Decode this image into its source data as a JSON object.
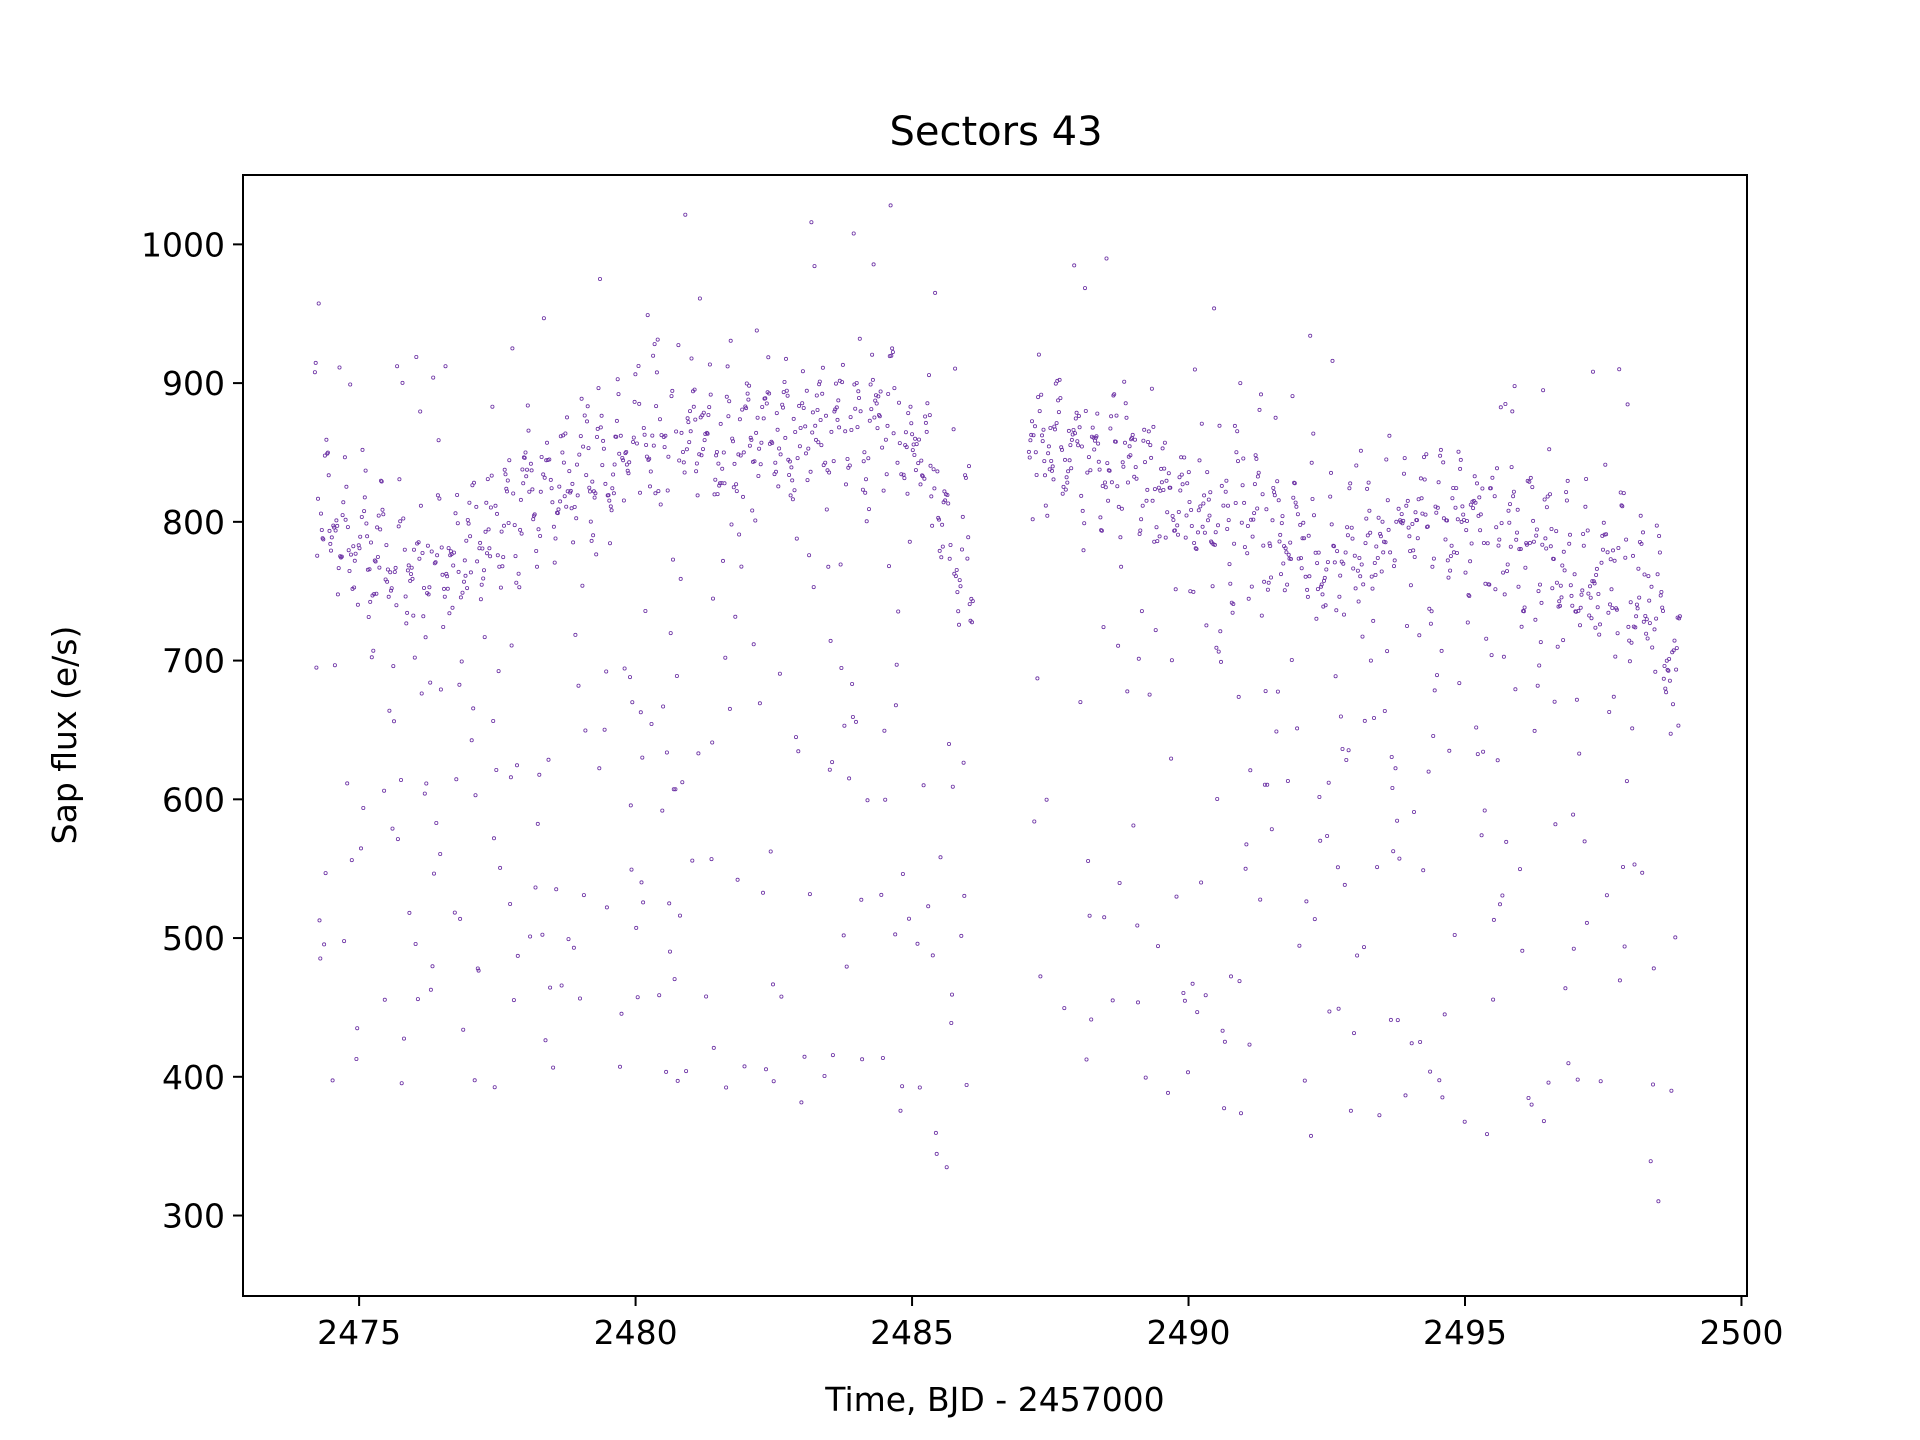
{
  "chart_data": {
    "type": "scatter",
    "title": "Sectors 43",
    "xlabel": "Time, BJD - 2457000",
    "ylabel": "Sap flux (e/s)",
    "xlim": [
      2472.9,
      2500.1
    ],
    "ylim": [
      242,
      1050
    ],
    "xticks": [
      2475,
      2480,
      2485,
      2490,
      2495,
      2500
    ],
    "yticks": [
      300,
      400,
      500,
      600,
      700,
      800,
      900,
      1000
    ],
    "grid": false,
    "legend": "none",
    "marker": "hollow-circle",
    "colors": {
      "points": "#6a2fa3",
      "axes": "#000000",
      "background": "#ffffff"
    },
    "series": [
      {
        "x_range": [
          2474.2,
          2498.9
        ],
        "gap": [
          2486.1,
          2487.1
        ],
        "cadence_days": 0.0139,
        "baseline_trend": [
          [
            2474.2,
            830
          ],
          [
            2474.6,
            790
          ],
          [
            2475.5,
            775
          ],
          [
            2476.5,
            770
          ],
          [
            2477.5,
            800
          ],
          [
            2478.5,
            825
          ],
          [
            2479.5,
            845
          ],
          [
            2480.5,
            865
          ],
          [
            2481.5,
            860
          ],
          [
            2482.5,
            860
          ],
          [
            2483.5,
            865
          ],
          [
            2484.5,
            875
          ],
          [
            2485.2,
            860
          ],
          [
            2485.6,
            790
          ],
          [
            2486.1,
            760
          ],
          [
            2487.1,
            870
          ],
          [
            2488.0,
            845
          ],
          [
            2489.0,
            835
          ],
          [
            2490.0,
            810
          ],
          [
            2491.0,
            795
          ],
          [
            2492.0,
            790
          ],
          [
            2493.0,
            770
          ],
          [
            2494.0,
            795
          ],
          [
            2495.0,
            800
          ],
          [
            2496.0,
            785
          ],
          [
            2497.0,
            765
          ],
          [
            2498.0,
            760
          ],
          [
            2498.5,
            730
          ],
          [
            2498.9,
            690
          ]
        ],
        "scatter_floor": [
          [
            2474.2,
            380
          ],
          [
            2477.0,
            375
          ],
          [
            2480.0,
            400
          ],
          [
            2483.0,
            380
          ],
          [
            2485.6,
            330
          ],
          [
            2486.1,
            310
          ],
          [
            2487.1,
            430
          ],
          [
            2490.0,
            380
          ],
          [
            2493.0,
            345
          ],
          [
            2496.0,
            360
          ],
          [
            2498.9,
            285
          ]
        ]
      }
    ]
  }
}
